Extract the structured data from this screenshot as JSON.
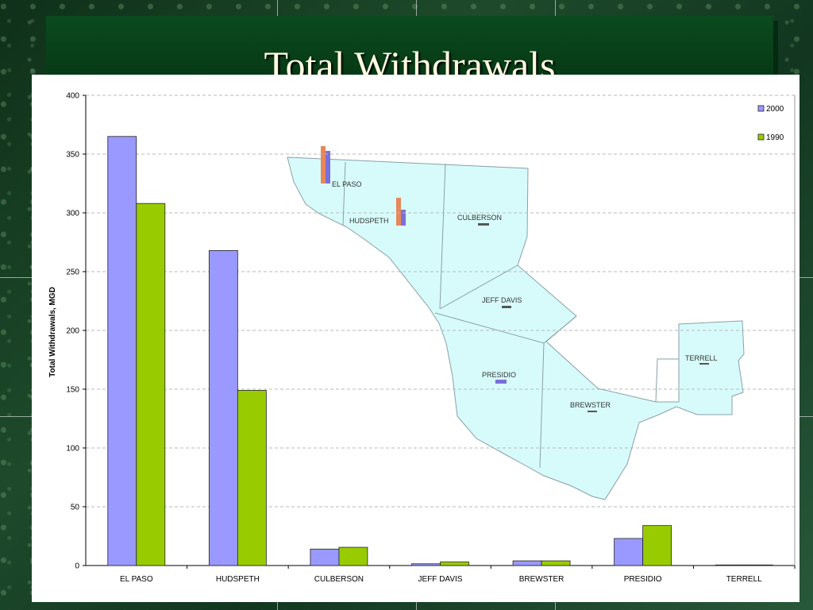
{
  "slide": {
    "title": "Total Withdrawals"
  },
  "chart_data": {
    "type": "bar",
    "title": "",
    "xlabel": "",
    "ylabel": "Total Withdrawals, MGD",
    "ylim": [
      0,
      400
    ],
    "yticks": [
      "0",
      "50",
      "100",
      "150",
      "200",
      "250",
      "300",
      "350",
      "400"
    ],
    "grid": true,
    "legend_position": "top-right",
    "categories": [
      "EL PASO",
      "HUDSPETH",
      "CULBERSON",
      "JEFF DAVIS",
      "BREWSTER",
      "PRESIDIO",
      "TERRELL"
    ],
    "series": [
      {
        "name": "2000",
        "color": "#9999ff",
        "values": [
          365,
          268,
          14,
          1.5,
          4,
          23,
          0.5
        ]
      },
      {
        "name": "1990",
        "color": "#99cc00",
        "values": [
          308,
          149,
          15.5,
          3,
          4,
          34,
          0.5
        ]
      }
    ]
  },
  "map": {
    "labels": [
      "EL PASO",
      "HUDSPETH",
      "CULBERSON",
      "JEFF DAVIS",
      "PRESIDIO",
      "BREWSTER",
      "TERRELL"
    ],
    "fill": "#d7fbfb",
    "stroke": "#8aa0a8"
  }
}
